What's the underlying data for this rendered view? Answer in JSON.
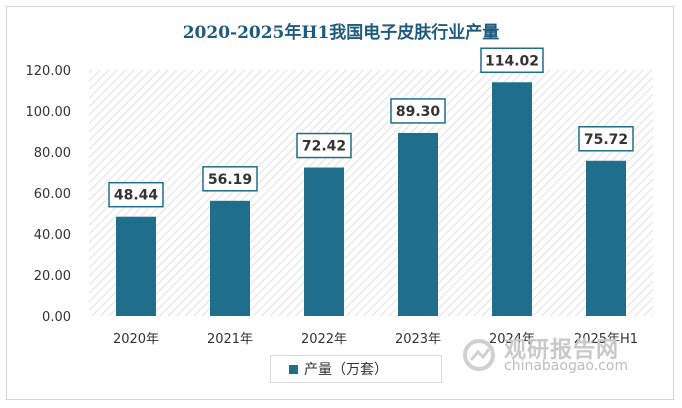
{
  "chart_data": {
    "type": "bar",
    "title": "2020-2025年H1我国电子皮肤行业产量",
    "categories": [
      "2020年",
      "2021年",
      "2022年",
      "2023年",
      "2024年",
      "2025年H1"
    ],
    "series": [
      {
        "name": "产量（万套）",
        "values": [
          48.44,
          56.19,
          72.42,
          89.3,
          114.02,
          75.72
        ]
      }
    ],
    "data_labels": [
      "48.44",
      "56.19",
      "72.42",
      "89.30",
      "114.02",
      "75.72"
    ],
    "y_ticks": [
      "0.00",
      "20.00",
      "40.00",
      "60.00",
      "80.00",
      "100.00",
      "120.00"
    ],
    "ylim": [
      0,
      120
    ],
    "xlabel": "",
    "ylabel": "",
    "grid": false,
    "legend_position": "bottom",
    "colors": {
      "bar": "#1f6e8c",
      "label_border": "#1f6e8c",
      "title": "#1f5b7c"
    }
  },
  "watermark": {
    "name": "观研报告网",
    "url": "chinabaogao.com"
  }
}
